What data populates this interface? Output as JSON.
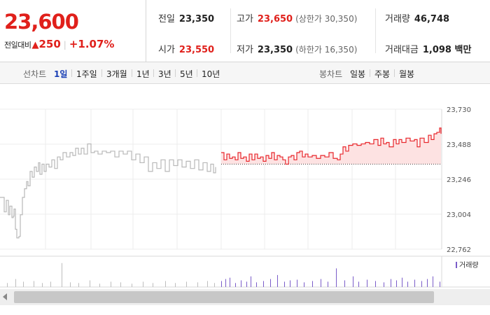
{
  "summary": {
    "current_price": "23,600",
    "change_label": "전일대비",
    "change_amount": "250",
    "change_rate": "+1.07%",
    "prev_close": {
      "label": "전일",
      "value": "23,350"
    },
    "open": {
      "label": "시가",
      "value": "23,550"
    },
    "high": {
      "label": "고가",
      "value": "23,650",
      "limit": "(상한가 30,350)"
    },
    "low": {
      "label": "저가",
      "value": "23,350",
      "limit": "(하한가 16,350)"
    },
    "volume": {
      "label": "거래량",
      "value": "46,748"
    },
    "trade_value": {
      "label": "거래대금",
      "value": "1,098 백만"
    }
  },
  "toolbar": {
    "line_chart_label": "선차트",
    "line_periods": [
      "1일",
      "1주일",
      "3개월",
      "1년",
      "3년",
      "5년",
      "10년"
    ],
    "active_period": "1일",
    "candle_chart_label": "봉차트",
    "candle_periods": [
      "일봉",
      "주봉",
      "월봉"
    ]
  },
  "chart_data": {
    "type": "line",
    "ylim": [
      22762,
      23730
    ],
    "y_ticks": [
      "23,730",
      "23,488",
      "23,246",
      "23,004",
      "22,762"
    ],
    "baseline": 23350,
    "volume_legend": "거래량",
    "colors": {
      "prev_day": "#b8b8b8",
      "today": "#e8262b",
      "today_fill": "#fde2e2",
      "volume": "#7a5cc9",
      "volume_prev": "#bdbdbd"
    },
    "prev_day_series": [
      {
        "x": 0,
        "y": 23120
      },
      {
        "x": 6,
        "y": 23020
      },
      {
        "x": 9,
        "y": 23100
      },
      {
        "x": 12,
        "y": 23000
      },
      {
        "x": 14,
        "y": 23060
      },
      {
        "x": 17,
        "y": 22980
      },
      {
        "x": 19,
        "y": 22990
      },
      {
        "x": 20,
        "y": 23040
      },
      {
        "x": 22,
        "y": 22900
      },
      {
        "x": 24,
        "y": 22840
      },
      {
        "x": 27,
        "y": 22850
      },
      {
        "x": 29,
        "y": 23000
      },
      {
        "x": 32,
        "y": 23120
      },
      {
        "x": 35,
        "y": 23180
      },
      {
        "x": 38,
        "y": 23230
      },
      {
        "x": 40,
        "y": 23200
      },
      {
        "x": 43,
        "y": 23300
      },
      {
        "x": 46,
        "y": 23260
      },
      {
        "x": 49,
        "y": 23330
      },
      {
        "x": 52,
        "y": 23300
      },
      {
        "x": 55,
        "y": 23360
      },
      {
        "x": 57,
        "y": 23280
      },
      {
        "x": 60,
        "y": 23350
      },
      {
        "x": 63,
        "y": 23300
      },
      {
        "x": 66,
        "y": 23350
      },
      {
        "x": 70,
        "y": 23330
      },
      {
        "x": 74,
        "y": 23380
      },
      {
        "x": 78,
        "y": 23320
      },
      {
        "x": 82,
        "y": 23400
      },
      {
        "x": 86,
        "y": 23380
      },
      {
        "x": 90,
        "y": 23430
      },
      {
        "x": 95,
        "y": 23400
      },
      {
        "x": 100,
        "y": 23430
      },
      {
        "x": 104,
        "y": 23410
      },
      {
        "x": 108,
        "y": 23460
      },
      {
        "x": 112,
        "y": 23420
      },
      {
        "x": 116,
        "y": 23460
      },
      {
        "x": 120,
        "y": 23420
      },
      {
        "x": 125,
        "y": 23490
      },
      {
        "x": 130,
        "y": 23430
      },
      {
        "x": 135,
        "y": 23440
      },
      {
        "x": 140,
        "y": 23420
      },
      {
        "x": 146,
        "y": 23440
      },
      {
        "x": 152,
        "y": 23430
      },
      {
        "x": 158,
        "y": 23440
      },
      {
        "x": 164,
        "y": 23400
      },
      {
        "x": 170,
        "y": 23440
      },
      {
        "x": 176,
        "y": 23420
      },
      {
        "x": 182,
        "y": 23440
      },
      {
        "x": 188,
        "y": 23380
      },
      {
        "x": 194,
        "y": 23420
      },
      {
        "x": 200,
        "y": 23360
      },
      {
        "x": 206,
        "y": 23400
      },
      {
        "x": 212,
        "y": 23300
      },
      {
        "x": 218,
        "y": 23360
      },
      {
        "x": 224,
        "y": 23320
      },
      {
        "x": 230,
        "y": 23380
      },
      {
        "x": 236,
        "y": 23300
      },
      {
        "x": 242,
        "y": 23380
      },
      {
        "x": 248,
        "y": 23340
      },
      {
        "x": 254,
        "y": 23380
      },
      {
        "x": 260,
        "y": 23330
      },
      {
        "x": 266,
        "y": 23370
      },
      {
        "x": 272,
        "y": 23320
      },
      {
        "x": 278,
        "y": 23380
      },
      {
        "x": 284,
        "y": 23310
      },
      {
        "x": 290,
        "y": 23360
      },
      {
        "x": 296,
        "y": 23300
      },
      {
        "x": 301,
        "y": 23350
      },
      {
        "x": 305,
        "y": 23290
      },
      {
        "x": 308,
        "y": 23330
      }
    ],
    "today_series": [
      {
        "x": 316,
        "y": 23430
      },
      {
        "x": 320,
        "y": 23380
      },
      {
        "x": 324,
        "y": 23420
      },
      {
        "x": 328,
        "y": 23390
      },
      {
        "x": 332,
        "y": 23400
      },
      {
        "x": 336,
        "y": 23380
      },
      {
        "x": 340,
        "y": 23430
      },
      {
        "x": 344,
        "y": 23390
      },
      {
        "x": 348,
        "y": 23400
      },
      {
        "x": 352,
        "y": 23370
      },
      {
        "x": 356,
        "y": 23420
      },
      {
        "x": 360,
        "y": 23380
      },
      {
        "x": 364,
        "y": 23420
      },
      {
        "x": 368,
        "y": 23390
      },
      {
        "x": 372,
        "y": 23400
      },
      {
        "x": 376,
        "y": 23370
      },
      {
        "x": 380,
        "y": 23410
      },
      {
        "x": 384,
        "y": 23390
      },
      {
        "x": 388,
        "y": 23430
      },
      {
        "x": 392,
        "y": 23380
      },
      {
        "x": 396,
        "y": 23410
      },
      {
        "x": 400,
        "y": 23400
      },
      {
        "x": 404,
        "y": 23380
      },
      {
        "x": 408,
        "y": 23350
      },
      {
        "x": 412,
        "y": 23400
      },
      {
        "x": 416,
        "y": 23410
      },
      {
        "x": 420,
        "y": 23380
      },
      {
        "x": 424,
        "y": 23430
      },
      {
        "x": 428,
        "y": 23440
      },
      {
        "x": 432,
        "y": 23400
      },
      {
        "x": 436,
        "y": 23420
      },
      {
        "x": 440,
        "y": 23400
      },
      {
        "x": 446,
        "y": 23410
      },
      {
        "x": 452,
        "y": 23390
      },
      {
        "x": 458,
        "y": 23410
      },
      {
        "x": 464,
        "y": 23400
      },
      {
        "x": 470,
        "y": 23430
      },
      {
        "x": 476,
        "y": 23390
      },
      {
        "x": 482,
        "y": 23380
      },
      {
        "x": 486,
        "y": 23420
      },
      {
        "x": 490,
        "y": 23470
      },
      {
        "x": 494,
        "y": 23440
      },
      {
        "x": 498,
        "y": 23480
      },
      {
        "x": 504,
        "y": 23490
      },
      {
        "x": 510,
        "y": 23480
      },
      {
        "x": 516,
        "y": 23490
      },
      {
        "x": 522,
        "y": 23500
      },
      {
        "x": 528,
        "y": 23490
      },
      {
        "x": 534,
        "y": 23520
      },
      {
        "x": 540,
        "y": 23480
      },
      {
        "x": 544,
        "y": 23530
      },
      {
        "x": 548,
        "y": 23490
      },
      {
        "x": 552,
        "y": 23500
      },
      {
        "x": 556,
        "y": 23470
      },
      {
        "x": 562,
        "y": 23520
      },
      {
        "x": 566,
        "y": 23490
      },
      {
        "x": 570,
        "y": 23520
      },
      {
        "x": 574,
        "y": 23500
      },
      {
        "x": 580,
        "y": 23530
      },
      {
        "x": 586,
        "y": 23510
      },
      {
        "x": 592,
        "y": 23520
      },
      {
        "x": 596,
        "y": 23470
      },
      {
        "x": 600,
        "y": 23530
      },
      {
        "x": 606,
        "y": 23500
      },
      {
        "x": 612,
        "y": 23550
      },
      {
        "x": 616,
        "y": 23520
      },
      {
        "x": 620,
        "y": 23560
      },
      {
        "x": 624,
        "y": 23570
      },
      {
        "x": 628,
        "y": 23600
      },
      {
        "x": 630,
        "y": 23560
      }
    ],
    "volumes": [
      {
        "x": 10,
        "v": 6
      },
      {
        "x": 22,
        "v": 12
      },
      {
        "x": 33,
        "v": 8
      },
      {
        "x": 48,
        "v": 9
      },
      {
        "x": 60,
        "v": 6
      },
      {
        "x": 72,
        "v": 8
      },
      {
        "x": 88,
        "v": 36
      },
      {
        "x": 100,
        "v": 7
      },
      {
        "x": 112,
        "v": 6
      },
      {
        "x": 128,
        "v": 10
      },
      {
        "x": 142,
        "v": 5
      },
      {
        "x": 158,
        "v": 8
      },
      {
        "x": 172,
        "v": 7
      },
      {
        "x": 188,
        "v": 5
      },
      {
        "x": 204,
        "v": 8
      },
      {
        "x": 218,
        "v": 6
      },
      {
        "x": 236,
        "v": 9
      },
      {
        "x": 250,
        "v": 6
      },
      {
        "x": 266,
        "v": 8
      },
      {
        "x": 282,
        "v": 7
      },
      {
        "x": 296,
        "v": 9
      },
      {
        "x": 306,
        "v": 6
      },
      {
        "x": 316,
        "v": 9
      },
      {
        "x": 322,
        "v": 12
      },
      {
        "x": 328,
        "v": 14
      },
      {
        "x": 336,
        "v": 6
      },
      {
        "x": 344,
        "v": 10
      },
      {
        "x": 352,
        "v": 8
      },
      {
        "x": 358,
        "v": 16
      },
      {
        "x": 366,
        "v": 7
      },
      {
        "x": 376,
        "v": 9
      },
      {
        "x": 386,
        "v": 12
      },
      {
        "x": 396,
        "v": 18
      },
      {
        "x": 406,
        "v": 8
      },
      {
        "x": 414,
        "v": 10
      },
      {
        "x": 424,
        "v": 11
      },
      {
        "x": 434,
        "v": 7
      },
      {
        "x": 446,
        "v": 9
      },
      {
        "x": 458,
        "v": 12
      },
      {
        "x": 468,
        "v": 8
      },
      {
        "x": 480,
        "v": 28
      },
      {
        "x": 492,
        "v": 10
      },
      {
        "x": 504,
        "v": 16
      },
      {
        "x": 512,
        "v": 8
      },
      {
        "x": 524,
        "v": 11
      },
      {
        "x": 536,
        "v": 9
      },
      {
        "x": 548,
        "v": 7
      },
      {
        "x": 558,
        "v": 12
      },
      {
        "x": 566,
        "v": 10
      },
      {
        "x": 574,
        "v": 14
      },
      {
        "x": 582,
        "v": 8
      },
      {
        "x": 592,
        "v": 11
      },
      {
        "x": 602,
        "v": 9
      },
      {
        "x": 610,
        "v": 12
      },
      {
        "x": 618,
        "v": 16
      },
      {
        "x": 628,
        "v": 8
      }
    ]
  }
}
